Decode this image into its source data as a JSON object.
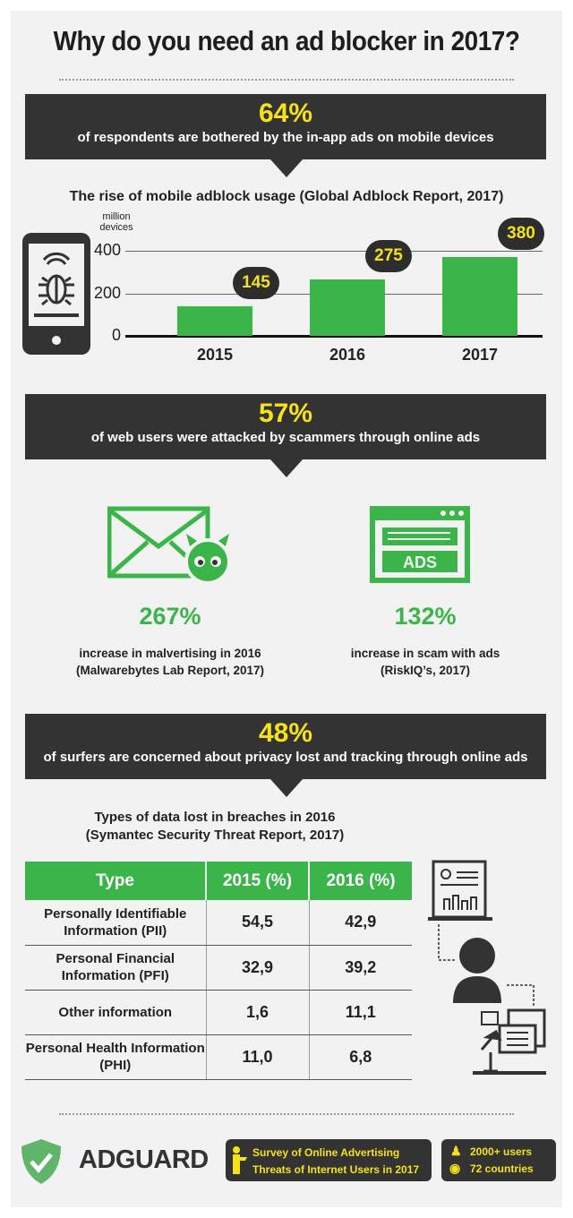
{
  "title": "Why do you need an ad blocker in 2017?",
  "banners": [
    {
      "pct": "64%",
      "text": "of respondents are bothered by the in-app ads on mobile devices"
    },
    {
      "pct": "57%",
      "text": "of web users were attacked by scammers through online ads"
    },
    {
      "pct": "48%",
      "text": "of surfers are concerned about privacy lost and tracking through online ads"
    }
  ],
  "chart_data": {
    "type": "bar",
    "title": "The rise of mobile adblock usage (Global Adblock Report, 2017)",
    "ylabel": "million devices",
    "categories": [
      "2015",
      "2016",
      "2017"
    ],
    "values": [
      145,
      275,
      380
    ],
    "data_labels": [
      "145",
      "275",
      "380"
    ],
    "yticks": [
      "0",
      "200",
      "400"
    ],
    "ylim": [
      0,
      400
    ],
    "grid": true,
    "bar_color": "#3bb54a"
  },
  "stats": [
    {
      "value": "267%",
      "line1": "increase in malvertising in 2016",
      "line2": "(Malwarebytes Lab Report, 2017)",
      "icon": "envelope-devil-icon"
    },
    {
      "value": "132%",
      "line1": "increase in scam with ads",
      "line2": "(RiskIQ’s, 2017)",
      "icon": "ads-window-icon",
      "icon_text": "ADS"
    }
  ],
  "table": {
    "title1": "Types of data lost in breaches in 2016",
    "title2": "(Symantec Security Threat Report, 2017)",
    "headers": [
      "Type",
      "2015 (%)",
      "2016 (%)"
    ],
    "rows": [
      [
        "Personally Identifiable Information (PII)",
        "54,5",
        "42,9"
      ],
      [
        "Personal Financial Information (PFI)",
        "32,9",
        "39,2"
      ],
      [
        "Other information",
        "1,6",
        "11,1"
      ],
      [
        "Personal Health Information (PHI)",
        "11,0",
        "6,8"
      ]
    ]
  },
  "footer": {
    "brand": "ADGUARD",
    "survey1": "Survey of Online Advertising",
    "survey2": "Threats of Internet Users in 2017",
    "users": "2000+ users",
    "countries": "72 countries"
  },
  "colors": {
    "green": "#3bb54a",
    "dark": "#333333",
    "yellow": "#f5e21b"
  }
}
